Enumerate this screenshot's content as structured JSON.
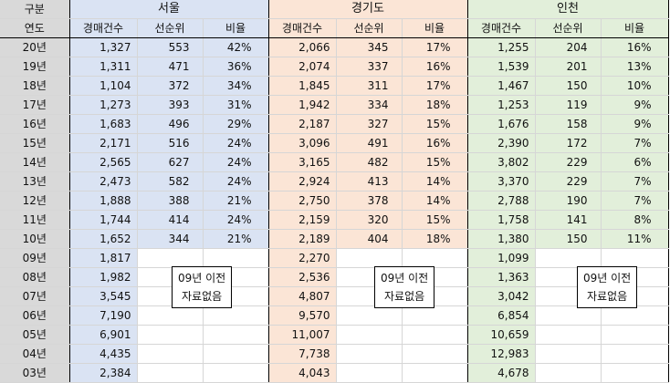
{
  "header": {
    "category_label": "구분",
    "year_label": "연도",
    "regions": [
      "서울",
      "경기도",
      "인천"
    ],
    "sub_columns": [
      "경매건수",
      "선순위",
      "비율"
    ]
  },
  "note_lines": [
    "09년 이전",
    "자료없음"
  ],
  "rows": [
    {
      "year": "20년",
      "seoul": [
        "1,327",
        "553",
        "42%"
      ],
      "gyeonggi": [
        "2,066",
        "345",
        "17%"
      ],
      "incheon": [
        "1,255",
        "204",
        "16%"
      ]
    },
    {
      "year": "19년",
      "seoul": [
        "1,311",
        "471",
        "36%"
      ],
      "gyeonggi": [
        "2,074",
        "337",
        "16%"
      ],
      "incheon": [
        "1,539",
        "201",
        "13%"
      ]
    },
    {
      "year": "18년",
      "seoul": [
        "1,104",
        "372",
        "34%"
      ],
      "gyeonggi": [
        "1,845",
        "311",
        "17%"
      ],
      "incheon": [
        "1,467",
        "150",
        "10%"
      ]
    },
    {
      "year": "17년",
      "seoul": [
        "1,273",
        "393",
        "31%"
      ],
      "gyeonggi": [
        "1,942",
        "334",
        "18%"
      ],
      "incheon": [
        "1,253",
        "119",
        "9%"
      ]
    },
    {
      "year": "16년",
      "seoul": [
        "1,683",
        "496",
        "29%"
      ],
      "gyeonggi": [
        "2,187",
        "327",
        "15%"
      ],
      "incheon": [
        "1,676",
        "158",
        "9%"
      ]
    },
    {
      "year": "15년",
      "seoul": [
        "2,171",
        "516",
        "24%"
      ],
      "gyeonggi": [
        "3,096",
        "491",
        "16%"
      ],
      "incheon": [
        "2,390",
        "172",
        "7%"
      ]
    },
    {
      "year": "14년",
      "seoul": [
        "2,565",
        "627",
        "24%"
      ],
      "gyeonggi": [
        "3,165",
        "482",
        "15%"
      ],
      "incheon": [
        "3,802",
        "229",
        "6%"
      ]
    },
    {
      "year": "13년",
      "seoul": [
        "2,473",
        "582",
        "24%"
      ],
      "gyeonggi": [
        "2,924",
        "413",
        "14%"
      ],
      "incheon": [
        "3,370",
        "229",
        "7%"
      ]
    },
    {
      "year": "12년",
      "seoul": [
        "1,888",
        "388",
        "21%"
      ],
      "gyeonggi": [
        "2,750",
        "378",
        "14%"
      ],
      "incheon": [
        "2,788",
        "190",
        "7%"
      ]
    },
    {
      "year": "11년",
      "seoul": [
        "1,744",
        "414",
        "24%"
      ],
      "gyeonggi": [
        "2,159",
        "320",
        "15%"
      ],
      "incheon": [
        "1,758",
        "141",
        "8%"
      ]
    },
    {
      "year": "10년",
      "seoul": [
        "1,652",
        "344",
        "21%"
      ],
      "gyeonggi": [
        "2,189",
        "404",
        "18%"
      ],
      "incheon": [
        "1,380",
        "150",
        "11%"
      ]
    },
    {
      "year": "09년",
      "seoul": [
        "1,817",
        "",
        ""
      ],
      "gyeonggi": [
        "2,270",
        "",
        ""
      ],
      "incheon": [
        "1,099",
        "",
        ""
      ]
    },
    {
      "year": "08년",
      "seoul": [
        "1,982",
        "",
        ""
      ],
      "gyeonggi": [
        "2,536",
        "",
        ""
      ],
      "incheon": [
        "1,363",
        "",
        ""
      ]
    },
    {
      "year": "07년",
      "seoul": [
        "3,545",
        "",
        ""
      ],
      "gyeonggi": [
        "4,807",
        "",
        ""
      ],
      "incheon": [
        "3,042",
        "",
        ""
      ]
    },
    {
      "year": "06년",
      "seoul": [
        "7,190",
        "",
        ""
      ],
      "gyeonggi": [
        "9,570",
        "",
        ""
      ],
      "incheon": [
        "6,854",
        "",
        ""
      ]
    },
    {
      "year": "05년",
      "seoul": [
        "6,901",
        "",
        ""
      ],
      "gyeonggi": [
        "11,007",
        "",
        ""
      ],
      "incheon": [
        "10,659",
        "",
        ""
      ]
    },
    {
      "year": "04년",
      "seoul": [
        "4,435",
        "",
        ""
      ],
      "gyeonggi": [
        "7,738",
        "",
        ""
      ],
      "incheon": [
        "12,983",
        "",
        ""
      ]
    },
    {
      "year": "03년",
      "seoul": [
        "2,384",
        "",
        ""
      ],
      "gyeonggi": [
        "4,043",
        "",
        ""
      ],
      "incheon": [
        "4,678",
        "",
        ""
      ]
    }
  ]
}
